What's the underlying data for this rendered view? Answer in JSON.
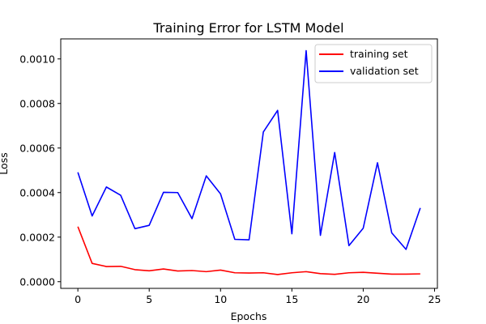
{
  "chart_data": {
    "type": "line",
    "title": "Training Error for LSTM Model",
    "xlabel": "Epochs",
    "ylabel": "Loss",
    "xlim": [
      -1.2,
      25.2
    ],
    "ylim": [
      -3e-05,
      0.00109
    ],
    "xticks": [
      0,
      5,
      10,
      15,
      20,
      25
    ],
    "xtick_labels": [
      "0",
      "5",
      "10",
      "15",
      "20",
      "25"
    ],
    "yticks": [
      0,
      0.0002,
      0.0004,
      0.0006,
      0.0008,
      0.001
    ],
    "ytick_labels": [
      "0.0000",
      "0.0002",
      "0.0004",
      "0.0006",
      "0.0008",
      "0.0010"
    ],
    "grid": false,
    "legend_position": "upper right",
    "x": [
      0,
      1,
      2,
      3,
      4,
      5,
      6,
      7,
      8,
      9,
      10,
      11,
      12,
      13,
      14,
      15,
      16,
      17,
      18,
      19,
      20,
      21,
      22,
      23,
      24
    ],
    "series": [
      {
        "name": "training set",
        "color": "#ff0000",
        "values": [
          0.000247,
          8.2e-05,
          6.8e-05,
          6.9e-05,
          5.4e-05,
          4.9e-05,
          5.7e-05,
          4.8e-05,
          5e-05,
          4.5e-05,
          5.2e-05,
          4e-05,
          3.9e-05,
          4e-05,
          3.2e-05,
          4e-05,
          4.5e-05,
          3.6e-05,
          3.3e-05,
          4e-05,
          4.2e-05,
          3.8e-05,
          3.4e-05,
          3.4e-05,
          3.5e-05
        ]
      },
      {
        "name": "validation set",
        "color": "#0000ff",
        "values": [
          0.000491,
          0.000295,
          0.000425,
          0.000388,
          0.000238,
          0.000253,
          0.000401,
          0.0004,
          0.000283,
          0.000475,
          0.000394,
          0.00019,
          0.000188,
          0.000672,
          0.000769,
          0.000215,
          0.001037,
          0.000208,
          0.00058,
          0.000162,
          0.00024,
          0.000534,
          0.000219,
          0.000145,
          0.000331
        ]
      }
    ]
  }
}
